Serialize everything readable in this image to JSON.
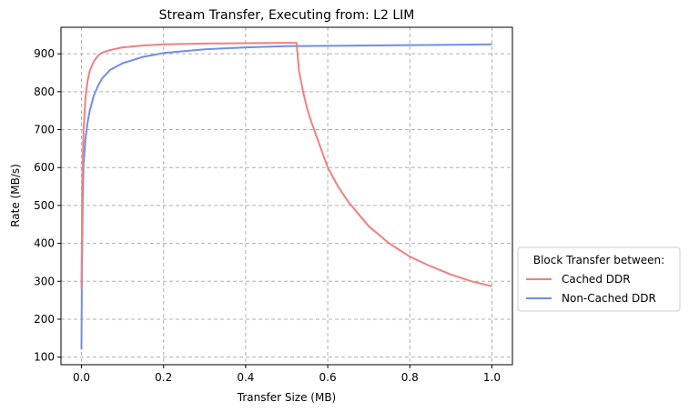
{
  "chart_data": {
    "type": "line",
    "title": "Stream Transfer, Executing from: L2 LIM",
    "xlabel": "Transfer Size (MB)",
    "ylabel": "Rate (MB/s)",
    "xlim": [
      -0.05,
      1.05
    ],
    "ylim": [
      80,
      970
    ],
    "xticks": [
      0.0,
      0.2,
      0.4,
      0.6,
      0.8,
      1.0
    ],
    "xtick_labels": [
      "0.0",
      "0.2",
      "0.4",
      "0.6",
      "0.8",
      "1.0"
    ],
    "yticks": [
      100,
      200,
      300,
      400,
      500,
      600,
      700,
      800,
      900
    ],
    "ytick_labels": [
      "100",
      "200",
      "300",
      "400",
      "500",
      "600",
      "700",
      "800",
      "900"
    ],
    "grid": true,
    "legend": {
      "title": "Block Transfer between:",
      "placement": "outside-right"
    },
    "series": [
      {
        "name": "Cached DDR",
        "color": "#f08080",
        "x": [
          0.0,
          0.002,
          0.005,
          0.01,
          0.015,
          0.02,
          0.03,
          0.04,
          0.05,
          0.07,
          0.1,
          0.15,
          0.2,
          0.3,
          0.4,
          0.5,
          0.524,
          0.53,
          0.54,
          0.55,
          0.56,
          0.58,
          0.6,
          0.625,
          0.65,
          0.7,
          0.75,
          0.8,
          0.85,
          0.9,
          0.95,
          1.0
        ],
        "y": [
          280,
          560,
          700,
          790,
          830,
          855,
          880,
          895,
          903,
          910,
          917,
          922,
          925,
          927,
          928,
          929,
          929,
          855,
          800,
          755,
          720,
          660,
          600,
          550,
          510,
          445,
          400,
          365,
          340,
          318,
          300,
          287
        ]
      },
      {
        "name": "Non-Cached DDR",
        "color": "#6f8fe8",
        "x": [
          0.0,
          0.001,
          0.003,
          0.005,
          0.01,
          0.015,
          0.02,
          0.03,
          0.04,
          0.05,
          0.07,
          0.1,
          0.15,
          0.2,
          0.3,
          0.4,
          0.5,
          0.6,
          0.7,
          0.8,
          0.9,
          1.0
        ],
        "y": [
          120,
          330,
          520,
          610,
          680,
          720,
          750,
          790,
          815,
          835,
          858,
          875,
          892,
          902,
          912,
          917,
          920,
          921,
          922,
          923,
          924,
          925
        ]
      }
    ]
  }
}
